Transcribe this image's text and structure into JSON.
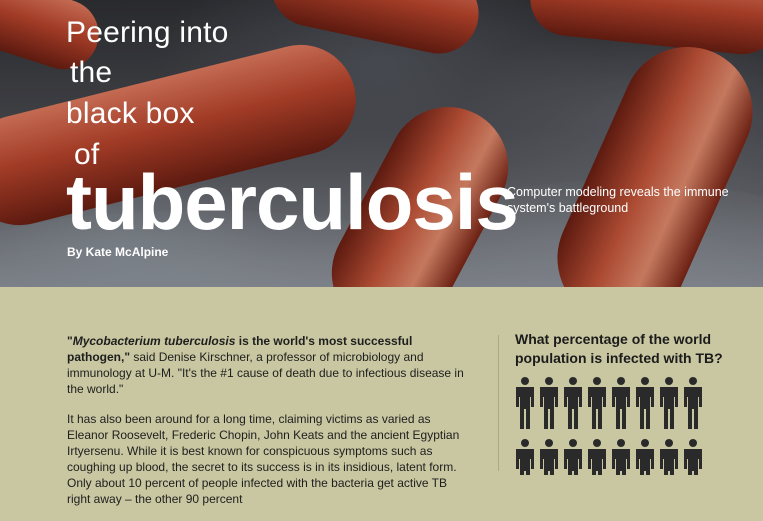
{
  "hero": {
    "title_lines": [
      "Peering into",
      "the",
      "black box",
      "of"
    ],
    "big_title": "tuberculosis",
    "subtitle": "Computer modeling reveals the immune system's battleground",
    "byline": "By Kate McAlpine"
  },
  "article": {
    "lead_quote_open": "\"",
    "lead_italic": "Mycobacterium tuberculosis",
    "lead_bold": " is the world's most successful pathogen,\"",
    "lead_rest": " said Denise Kirschner, a professor of microbiology and immunology at U-M. \"It's the #1 cause of death due to infectious disease in the world.\"",
    "para2": "It has also been around for a long time, claiming victims as varied as Eleanor Roosevelt, Frederic Chopin, John Keats and the ancient Egyptian Irtyersenu. While it is best known for conspicuous symptoms such as coughing up blood, the secret to its success is in its insidious, latent form. Only about 10 percent of people infected with the bacteria get active TB right away – the other 90 percent"
  },
  "sidebar": {
    "question": "What percentage of the world population is infected with TB?",
    "icon": "person-icon",
    "icon_color": "#2a2a2a"
  },
  "colors": {
    "page_bg": "#c8c7a1",
    "bacteria": "#b8442c",
    "hero_text": "#ffffff"
  }
}
